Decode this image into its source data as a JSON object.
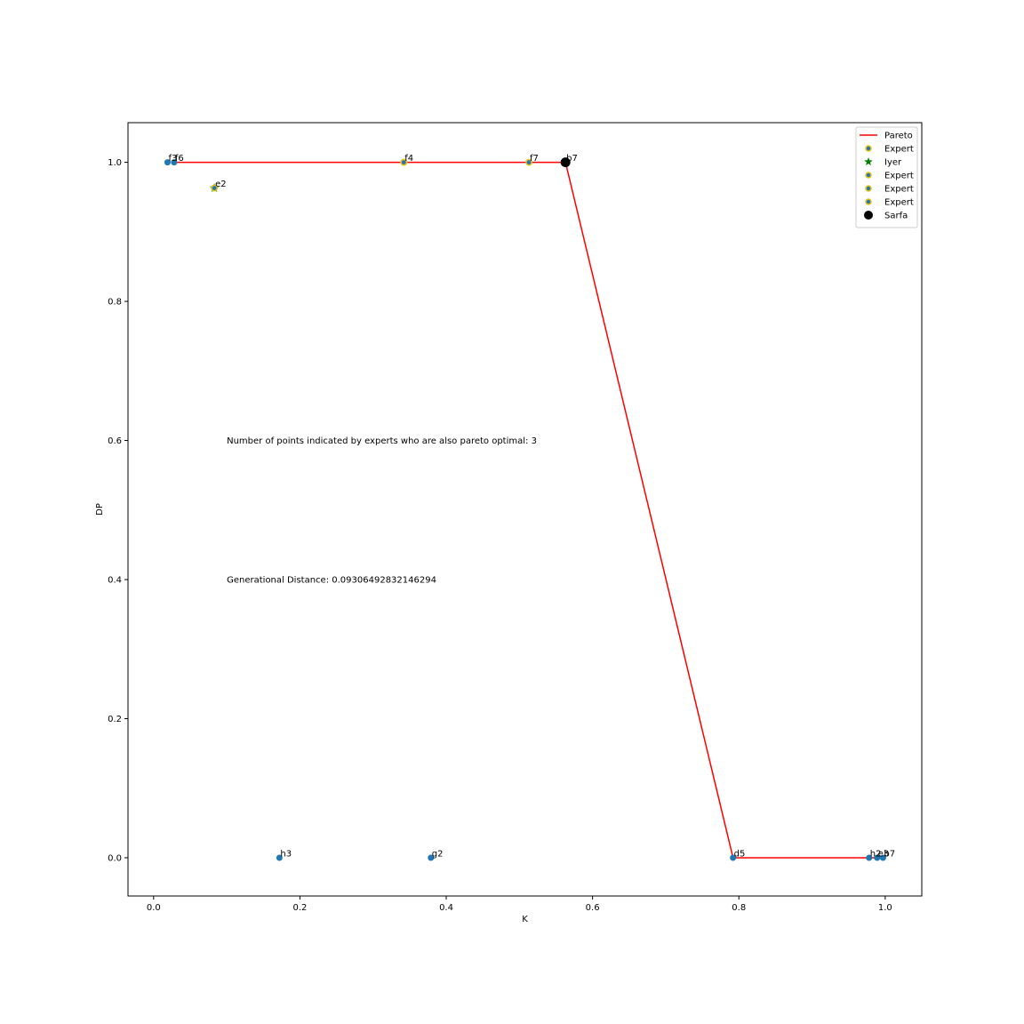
{
  "chart_data": {
    "type": "scatter",
    "title": "",
    "xlabel": "K",
    "ylabel": "DP",
    "xlim": [
      -0.035,
      1.05
    ],
    "ylim": [
      -0.055,
      1.057
    ],
    "xticks": [
      0.0,
      0.2,
      0.4,
      0.6,
      0.8,
      1.0
    ],
    "xtick_labels": [
      "0.0",
      "0.2",
      "0.4",
      "0.6",
      "0.8",
      "1.0"
    ],
    "yticks": [
      0.0,
      0.2,
      0.4,
      0.6,
      0.8,
      1.0
    ],
    "ytick_labels": [
      "0.0",
      "0.2",
      "0.4",
      "0.6",
      "0.8",
      "1.0"
    ],
    "grid": false,
    "legend_position": "top-right",
    "points": [
      {
        "label": "f3",
        "x": 0.019,
        "y": 1.0
      },
      {
        "label": "f6",
        "x": 0.028,
        "y": 1.0
      },
      {
        "label": "e2",
        "x": 0.083,
        "y": 0.963
      },
      {
        "label": "f4",
        "x": 0.342,
        "y": 1.0
      },
      {
        "label": "f7",
        "x": 0.513,
        "y": 1.0
      },
      {
        "label": "b7",
        "x": 0.563,
        "y": 1.0
      },
      {
        "label": "h3",
        "x": 0.172,
        "y": 0.0
      },
      {
        "label": "g2",
        "x": 0.379,
        "y": 0.0
      },
      {
        "label": "d5",
        "x": 0.792,
        "y": 0.0
      },
      {
        "label": "h2",
        "x": 0.978,
        "y": 0.0
      },
      {
        "label": "e3",
        "x": 0.989,
        "y": 0.0
      },
      {
        "label": "b7",
        "x": 0.997,
        "y": 0.0
      }
    ],
    "series": [
      {
        "name": "Pareto",
        "type": "line",
        "color": "#ff0000",
        "x": [
          0.028,
          0.342,
          0.513,
          0.563,
          0.792,
          0.978,
          0.989,
          0.997
        ],
        "y": [
          1.0,
          1.0,
          1.0,
          1.0,
          0.0,
          0.0,
          0.0,
          0.0
        ]
      },
      {
        "name": "Expert",
        "type": "scatter",
        "marker": "circle-edge",
        "color": "#e8c21b",
        "x": [
          0.342
        ],
        "y": [
          1.0
        ]
      },
      {
        "name": "Iyer",
        "type": "scatter",
        "marker": "star",
        "color": "#008000",
        "x": [
          0.083
        ],
        "y": [
          0.963
        ]
      },
      {
        "name": "Expert",
        "type": "scatter",
        "marker": "circle-edge",
        "color": "#e8c21b",
        "x": [
          0.513
        ],
        "y": [
          1.0
        ]
      },
      {
        "name": "Expert",
        "type": "scatter",
        "marker": "circle-edge",
        "color": "#e8c21b",
        "x": [
          0.083
        ],
        "y": [
          0.963
        ]
      },
      {
        "name": "Expert",
        "type": "scatter",
        "marker": "circle-edge",
        "color": "#e8c21b",
        "x": [
          0.342
        ],
        "y": [
          1.0
        ]
      },
      {
        "name": "Sarfa",
        "type": "scatter",
        "marker": "big-circle",
        "color": "#000000",
        "x": [
          0.563
        ],
        "y": [
          1.0
        ]
      }
    ],
    "point_color": "#1f77b4",
    "annotations": [
      {
        "text": "Number of points indicated by experts who are also pareto optimal: 3",
        "x": 0.1,
        "y": 0.6
      },
      {
        "text": "Generational Distance: 0.09306492832146294",
        "x": 0.1,
        "y": 0.4
      }
    ]
  }
}
